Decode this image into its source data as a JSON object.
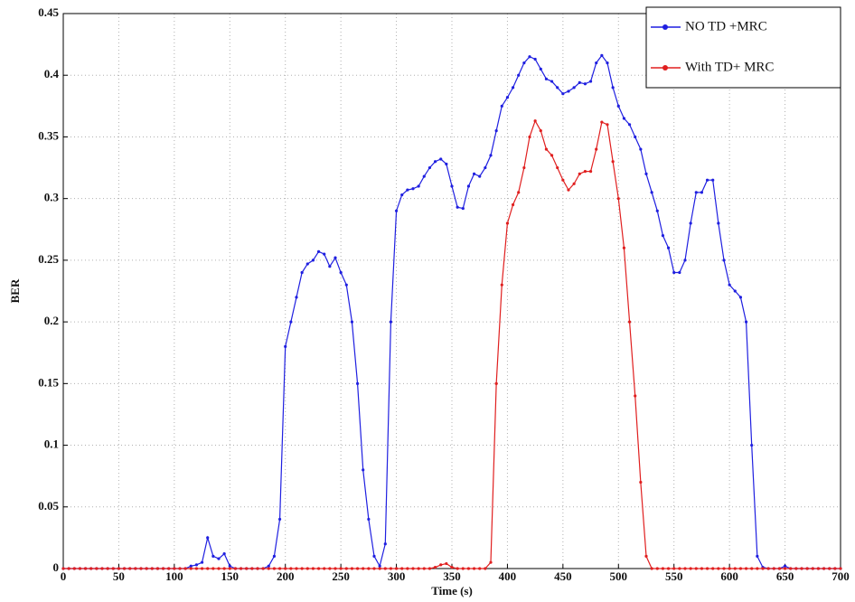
{
  "chart_data": {
    "type": "line",
    "x_label": "Time (s)",
    "y_label": "BER",
    "x": [
      0,
      5,
      10,
      15,
      20,
      25,
      30,
      35,
      40,
      45,
      50,
      55,
      60,
      65,
      70,
      75,
      80,
      85,
      90,
      95,
      100,
      105,
      110,
      115,
      120,
      125,
      130,
      135,
      140,
      145,
      150,
      155,
      160,
      165,
      170,
      175,
      180,
      185,
      190,
      195,
      200,
      205,
      210,
      215,
      220,
      225,
      230,
      235,
      240,
      245,
      250,
      255,
      260,
      265,
      270,
      275,
      280,
      285,
      290,
      295,
      300,
      305,
      310,
      315,
      320,
      325,
      330,
      335,
      340,
      345,
      350,
      355,
      360,
      365,
      370,
      375,
      380,
      385,
      390,
      395,
      400,
      405,
      410,
      415,
      420,
      425,
      430,
      435,
      440,
      445,
      450,
      455,
      460,
      465,
      470,
      475,
      480,
      485,
      490,
      495,
      500,
      505,
      510,
      515,
      520,
      525,
      530,
      535,
      540,
      545,
      550,
      555,
      560,
      565,
      570,
      575,
      580,
      585,
      590,
      595,
      600,
      605,
      610,
      615,
      620,
      625,
      630,
      635,
      640,
      645,
      650,
      655,
      660,
      665,
      670,
      675,
      680,
      685,
      690,
      695,
      700
    ],
    "series": [
      {
        "name": "NO TD +MRC",
        "color": "#1f1fe0",
        "values": [
          0,
          0,
          0,
          0,
          0,
          0,
          0,
          0,
          0,
          0,
          0,
          0,
          0,
          0,
          0,
          0,
          0,
          0,
          0,
          0,
          0,
          0,
          0,
          0.002,
          0.003,
          0.005,
          0.025,
          0.01,
          0.008,
          0.012,
          0.002,
          0,
          0,
          0,
          0,
          0,
          0,
          0.002,
          0.01,
          0.04,
          0.18,
          0.2,
          0.22,
          0.24,
          0.247,
          0.25,
          0.257,
          0.255,
          0.245,
          0.252,
          0.24,
          0.23,
          0.2,
          0.15,
          0.08,
          0.04,
          0.01,
          0.002,
          0.02,
          0.2,
          0.29,
          0.303,
          0.307,
          0.308,
          0.31,
          0.318,
          0.325,
          0.33,
          0.332,
          0.328,
          0.31,
          0.293,
          0.292,
          0.31,
          0.32,
          0.318,
          0.325,
          0.335,
          0.355,
          0.375,
          0.382,
          0.39,
          0.4,
          0.41,
          0.415,
          0.413,
          0.405,
          0.397,
          0.395,
          0.39,
          0.385,
          0.387,
          0.39,
          0.394,
          0.393,
          0.395,
          0.41,
          0.416,
          0.41,
          0.39,
          0.375,
          0.365,
          0.36,
          0.35,
          0.34,
          0.32,
          0.305,
          0.29,
          0.27,
          0.26,
          0.24,
          0.24,
          0.25,
          0.28,
          0.305,
          0.305,
          0.315,
          0.315,
          0.28,
          0.25,
          0.23,
          0.225,
          0.22,
          0.2,
          0.1,
          0.01,
          0.001,
          0,
          0,
          0,
          0.002,
          0,
          0,
          0,
          0,
          0,
          0,
          0,
          0,
          0,
          0
        ]
      },
      {
        "name": "With TD+ MRC",
        "color": "#e01f1f",
        "values": [
          0,
          0,
          0,
          0,
          0,
          0,
          0,
          0,
          0,
          0,
          0,
          0,
          0,
          0,
          0,
          0,
          0,
          0,
          0,
          0,
          0,
          0,
          0,
          0,
          0,
          0,
          0,
          0,
          0,
          0,
          0,
          0,
          0,
          0,
          0,
          0,
          0,
          0,
          0,
          0,
          0,
          0,
          0,
          0,
          0,
          0,
          0,
          0,
          0,
          0,
          0,
          0,
          0,
          0,
          0,
          0,
          0,
          0,
          0,
          0,
          0,
          0,
          0,
          0,
          0,
          0,
          0,
          0.001,
          0.003,
          0.004,
          0.001,
          0,
          0,
          0,
          0,
          0,
          0,
          0.005,
          0.15,
          0.23,
          0.28,
          0.295,
          0.305,
          0.325,
          0.35,
          0.363,
          0.355,
          0.34,
          0.335,
          0.325,
          0.315,
          0.307,
          0.312,
          0.32,
          0.322,
          0.322,
          0.34,
          0.362,
          0.36,
          0.33,
          0.3,
          0.26,
          0.2,
          0.14,
          0.07,
          0.01,
          0,
          0,
          0,
          0,
          0,
          0,
          0,
          0,
          0,
          0,
          0,
          0,
          0,
          0,
          0,
          0,
          0,
          0,
          0,
          0,
          0,
          0,
          0,
          0,
          0,
          0,
          0,
          0,
          0,
          0,
          0,
          0,
          0,
          0,
          0
        ]
      }
    ],
    "xlim": [
      0,
      700
    ],
    "ylim": [
      0,
      0.45
    ],
    "xticks": [
      0,
      50,
      100,
      150,
      200,
      250,
      300,
      350,
      400,
      450,
      500,
      550,
      600,
      650,
      700
    ],
    "yticks": [
      0,
      0.05,
      0.1,
      0.15,
      0.2,
      0.25,
      0.3,
      0.35,
      0.4,
      0.45
    ],
    "grid": true,
    "legend": "upper right"
  }
}
